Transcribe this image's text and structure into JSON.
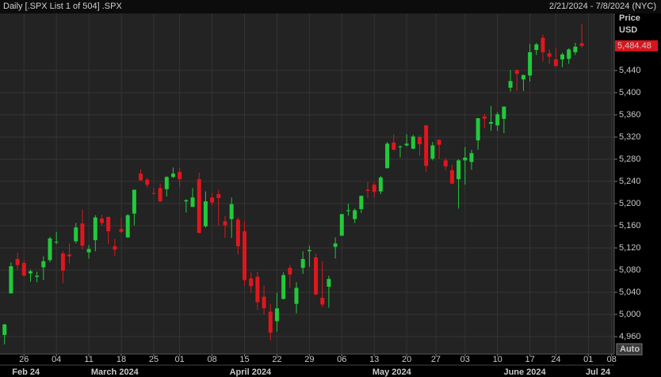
{
  "chart_data": {
    "type": "candlestick",
    "title": "Daily [.SPX List 1 of 504] .SPX",
    "date_range": "2/21/2024 - 7/8/2024 (NYC)",
    "y_label": "Price",
    "y_unit": "USD",
    "button": "Auto",
    "up_color": "#22c93c",
    "down_color": "#e0161e",
    "grid": true,
    "ylim": [
      4928.6,
      5542.9
    ],
    "yticks": [
      {
        "value": 4960,
        "label": "4,960"
      },
      {
        "value": 5000,
        "label": "5,000"
      },
      {
        "value": 5040,
        "label": "5,040"
      },
      {
        "value": 5080,
        "label": "5,080"
      },
      {
        "value": 5120,
        "label": "5,120"
      },
      {
        "value": 5160,
        "label": "5,160"
      },
      {
        "value": 5200,
        "label": "5,200"
      },
      {
        "value": 5240,
        "label": "5,240"
      },
      {
        "value": 5280,
        "label": "5,280"
      },
      {
        "value": 5320,
        "label": "5,320"
      },
      {
        "value": 5360,
        "label": "5,360"
      },
      {
        "value": 5400,
        "label": "5,400"
      },
      {
        "value": 5440,
        "label": "5,440"
      }
    ],
    "xlim": [
      -0.7,
      94
    ],
    "xticks": [
      {
        "value": 3,
        "label": "26"
      },
      {
        "value": 8,
        "label": "04"
      },
      {
        "value": 13,
        "label": "11"
      },
      {
        "value": 18,
        "label": "18"
      },
      {
        "value": 23,
        "label": "25"
      },
      {
        "value": 27,
        "label": "01"
      },
      {
        "value": 32,
        "label": "08"
      },
      {
        "value": 37,
        "label": "15"
      },
      {
        "value": 42,
        "label": "22"
      },
      {
        "value": 47,
        "label": "29"
      },
      {
        "value": 52,
        "label": "06"
      },
      {
        "value": 57,
        "label": "13"
      },
      {
        "value": 62,
        "label": "20"
      },
      {
        "value": 66.5,
        "label": "27"
      },
      {
        "value": 71,
        "label": "03"
      },
      {
        "value": 76,
        "label": "10"
      },
      {
        "value": 81,
        "label": "17"
      },
      {
        "value": 85,
        "label": "24"
      },
      {
        "value": 90,
        "label": "01"
      },
      {
        "value": 93.6,
        "label": "08"
      }
    ],
    "months": [
      {
        "value": 3.3,
        "label": "Feb 24"
      },
      {
        "value": 17,
        "label": "March 2024"
      },
      {
        "value": 37.9,
        "label": "April 2024"
      },
      {
        "value": 59.7,
        "label": "May 2024"
      },
      {
        "value": 80.2,
        "label": "June 2024"
      },
      {
        "value": 91.5,
        "label": "Jul 24"
      }
    ],
    "open": [
      4963,
      5038,
      5100,
      5093,
      5074,
      5068,
      5085,
      5098,
      5131,
      5110,
      5108,
      5132,
      5164,
      5112,
      5134,
      5173,
      5176,
      5123,
      5154,
      5139,
      5182,
      5254,
      5243,
      5219,
      5228,
      5226,
      5248,
      5257,
      5204,
      5194,
      5244,
      5159,
      5211,
      5217,
      5168,
      5172,
      5171,
      5150,
      5065,
      5068,
      5032,
      5005,
      4988,
      5028,
      5084,
      5019,
      5084,
      5114,
      5103,
      5030,
      5050,
      5122,
      5142,
      5188,
      5172,
      5190,
      5225,
      5234,
      5222,
      5264,
      5310,
      5303,
      5305,
      5299,
      5320,
      5341,
      5281,
      5315,
      5278,
      5260,
      5244,
      5278,
      5275,
      5314,
      5357,
      5344,
      5341,
      5353,
      5409,
      5441,
      5424,
      5431,
      5477,
      5499,
      5471,
      5460,
      5460,
      5461,
      5473,
      5489
    ],
    "high": [
      4983,
      5094,
      5111,
      5098,
      5081,
      5077,
      5105,
      5140,
      5149,
      5114,
      5128,
      5165,
      5189,
      5125,
      5179,
      5180,
      5176,
      5136,
      5175,
      5181,
      5225,
      5262,
      5246,
      5229,
      5236,
      5249,
      5265,
      5264,
      5208,
      5228,
      5256,
      5222,
      5219,
      5225,
      5178,
      5211,
      5175,
      5168,
      5076,
      5077,
      5052,
      5019,
      5039,
      5076,
      5089,
      5058,
      5114,
      5124,
      5110,
      5096,
      5070,
      5139,
      5181,
      5200,
      5191,
      5214,
      5239,
      5238,
      5250,
      5311,
      5325,
      5305,
      5325,
      5324,
      5323,
      5342,
      5311,
      5316,
      5282,
      5270,
      5280,
      5302,
      5297,
      5354,
      5362,
      5376,
      5365,
      5375,
      5441,
      5442,
      5432,
      5488,
      5490,
      5505,
      5478,
      5480,
      5472,
      5480,
      5490,
      5524
    ],
    "low": [
      4946,
      5038,
      5081,
      5068,
      5059,
      5058,
      5062,
      5094,
      5127,
      5056,
      5092,
      5128,
      5117,
      5101,
      5114,
      5160,
      5127,
      5105,
      5146,
      5138,
      5161,
      5241,
      5229,
      5216,
      5203,
      5213,
      5246,
      5229,
      5184,
      5194,
      5146,
      5157,
      5197,
      5160,
      5138,
      5138,
      5108,
      5052,
      5039,
      5008,
      5000,
      4953,
      4969,
      5027,
      5048,
      5002,
      5073,
      5086,
      5035,
      5013,
      5012,
      5101,
      5142,
      5178,
      5165,
      5183,
      5210,
      5211,
      5217,
      5263,
      5296,
      5283,
      5303,
      5298,
      5286,
      5257,
      5278,
      5281,
      5260,
      5235,
      5191,
      5234,
      5261,
      5297,
      5336,
      5331,
      5331,
      5327,
      5402,
      5403,
      5403,
      5420,
      5468,
      5456,
      5452,
      5447,
      5446,
      5452,
      5468,
      5481
    ],
    "close": [
      4982,
      5087,
      5089,
      5070,
      5078,
      5070,
      5096,
      5137,
      5131,
      5079,
      5105,
      5157,
      5124,
      5118,
      5175,
      5165,
      5150,
      5117,
      5149,
      5179,
      5225,
      5242,
      5234,
      5218,
      5204,
      5248,
      5254,
      5244,
      5206,
      5211,
      5147,
      5204,
      5202,
      5210,
      5161,
      5199,
      5123,
      5062,
      5051,
      5022,
      5011,
      4967,
      5011,
      5071,
      5072,
      5048,
      5100,
      5116,
      5036,
      5018,
      5064,
      5128,
      5181,
      5188,
      5188,
      5214,
      5223,
      5221,
      5247,
      5308,
      5297,
      5303,
      5308,
      5321,
      5307,
      5268,
      5305,
      5306,
      5267,
      5236,
      5278,
      5283,
      5291,
      5354,
      5353,
      5347,
      5361,
      5375,
      5421,
      5434,
      5432,
      5473,
      5487,
      5473,
      5465,
      5448,
      5469,
      5478,
      5483,
      5484.48
    ],
    "last_price": {
      "value": 5484.48,
      "label": "5,484.48"
    }
  }
}
